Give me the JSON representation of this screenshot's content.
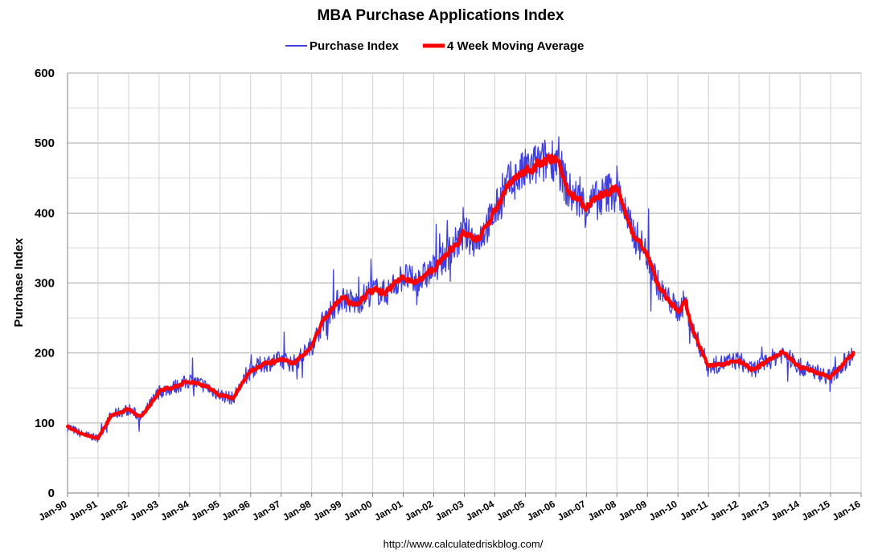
{
  "chart_data": {
    "type": "line",
    "title": "MBA Purchase Applications Index",
    "xlabel": "",
    "ylabel": "Purchase Index",
    "ylim": [
      0,
      600
    ],
    "yticks": [
      0,
      100,
      200,
      300,
      400,
      500,
      600
    ],
    "xlim": [
      1990,
      2016
    ],
    "xtick_labels": [
      "Jan-90",
      "Jan-91",
      "Jan-92",
      "Jan-93",
      "Jan-94",
      "Jan-95",
      "Jan-96",
      "Jan-97",
      "Jan-98",
      "Jan-99",
      "Jan-00",
      "Jan-01",
      "Jan-02",
      "Jan-03",
      "Jan-04",
      "Jan-05",
      "Jan-06",
      "Jan-07",
      "Jan-08",
      "Jan-09",
      "Jan-10",
      "Jan-11",
      "Jan-12",
      "Jan-13",
      "Jan-14",
      "Jan-15",
      "Jan-16"
    ],
    "grid": true,
    "legend_position": "top-center",
    "source": "http://www.calculatedriskblog.com/",
    "series": [
      {
        "name": "Purchase Index",
        "color": "#4040e0",
        "style": "thin-noisy",
        "x": [
          "1990-01",
          "1990-06",
          "1991-01",
          "1991-06",
          "1992-01",
          "1992-06",
          "1993-01",
          "1993-06",
          "1994-01",
          "1994-06",
          "1995-01",
          "1995-06",
          "1996-01",
          "1996-06",
          "1997-01",
          "1997-06",
          "1998-01",
          "1998-06",
          "1999-01",
          "1999-06",
          "2000-01",
          "2000-06",
          "2001-01",
          "2001-06",
          "2002-01",
          "2002-06",
          "2003-01",
          "2003-06",
          "2004-01",
          "2004-06",
          "2005-01",
          "2005-06",
          "2006-01",
          "2006-06",
          "2007-01",
          "2007-06",
          "2008-01",
          "2008-06",
          "2009-01",
          "2009-06",
          "2010-01",
          "2010-04",
          "2010-06",
          "2011-01",
          "2011-06",
          "2012-01",
          "2012-06",
          "2013-01",
          "2013-06",
          "2014-01",
          "2014-06",
          "2015-01",
          "2015-06",
          "2015-10"
        ],
        "values": [
          95,
          85,
          78,
          110,
          120,
          108,
          145,
          150,
          160,
          155,
          140,
          135,
          175,
          185,
          190,
          185,
          210,
          250,
          280,
          270,
          290,
          285,
          310,
          300,
          320,
          340,
          370,
          360,
          400,
          440,
          460,
          470,
          480,
          430,
          410,
          420,
          440,
          380,
          340,
          290,
          260,
          275,
          240,
          180,
          185,
          190,
          175,
          190,
          200,
          180,
          175,
          165,
          185,
          200
        ]
      },
      {
        "name": "4 Week Moving Average",
        "color": "#ff0000",
        "style": "thick-smooth",
        "x": [
          "1990-01",
          "1990-06",
          "1991-01",
          "1991-06",
          "1992-01",
          "1992-06",
          "1993-01",
          "1993-06",
          "1994-01",
          "1994-06",
          "1995-01",
          "1995-06",
          "1996-01",
          "1996-06",
          "1997-01",
          "1997-06",
          "1998-01",
          "1998-06",
          "1999-01",
          "1999-06",
          "2000-01",
          "2000-06",
          "2001-01",
          "2001-06",
          "2002-01",
          "2002-06",
          "2003-01",
          "2003-06",
          "2004-01",
          "2004-06",
          "2005-01",
          "2005-06",
          "2006-01",
          "2006-06",
          "2007-01",
          "2007-06",
          "2008-01",
          "2008-06",
          "2009-01",
          "2009-06",
          "2010-01",
          "2010-04",
          "2010-06",
          "2011-01",
          "2011-06",
          "2012-01",
          "2012-06",
          "2013-01",
          "2013-06",
          "2014-01",
          "2014-06",
          "2015-01",
          "2015-06",
          "2015-10"
        ],
        "values": [
          95,
          85,
          78,
          110,
          120,
          108,
          145,
          150,
          160,
          155,
          140,
          135,
          175,
          185,
          190,
          185,
          210,
          250,
          280,
          270,
          290,
          285,
          310,
          300,
          320,
          340,
          370,
          360,
          400,
          440,
          460,
          470,
          480,
          430,
          410,
          420,
          440,
          380,
          340,
          290,
          260,
          275,
          240,
          180,
          185,
          190,
          175,
          190,
          200,
          180,
          175,
          165,
          185,
          200
        ]
      }
    ]
  }
}
